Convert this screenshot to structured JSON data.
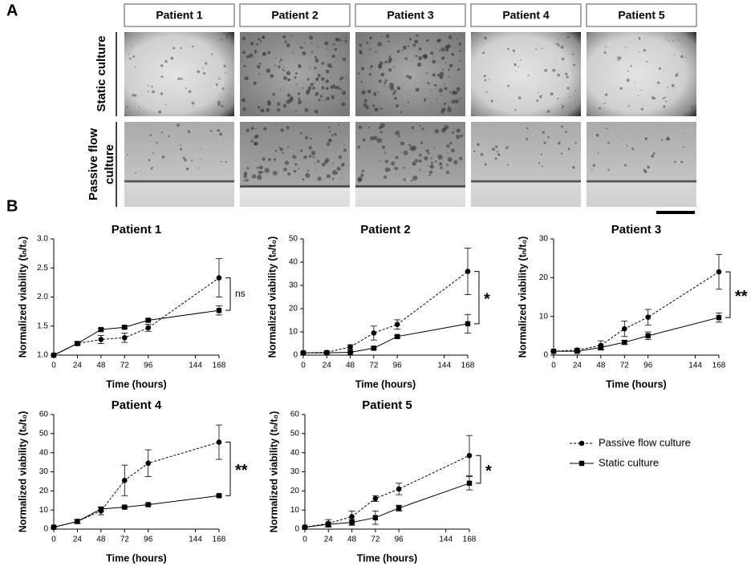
{
  "figure": {
    "panel_a": {
      "label": "A",
      "columns": [
        "Patient 1",
        "Patient 2",
        "Patient 3",
        "Patient 4",
        "Patient 5"
      ],
      "rows": [
        "Static culture",
        "Passive flow culture"
      ]
    },
    "panel_b": {
      "label": "B"
    }
  },
  "chart_data": [
    {
      "type": "line",
      "title": "Patient 1",
      "xlabel": "Time (hours)",
      "ylabel": "Normalized viability (tₙ/t₀)",
      "x": [
        0,
        24,
        48,
        72,
        96,
        168
      ],
      "xlim": [
        0,
        168
      ],
      "xticks": [
        0,
        24,
        48,
        72,
        96,
        144,
        168
      ],
      "ylim": [
        1,
        3
      ],
      "yticks": [
        {
          "value": 1,
          "label": "1.0"
        },
        1.5,
        {
          "value": 2,
          "label": "2.0"
        },
        2.5,
        {
          "value": 3,
          "label": "3.0"
        }
      ],
      "series": [
        {
          "name": "Passive flow culture",
          "color": "#000000",
          "marker": "circle",
          "dashed": true,
          "values": [
            1.0,
            1.2,
            1.27,
            1.3,
            1.47,
            2.33
          ],
          "errors": [
            0,
            0.03,
            0.07,
            0.08,
            0.06,
            0.33
          ]
        },
        {
          "name": "Static culture",
          "color": "#000000",
          "marker": "square",
          "dashed": false,
          "values": [
            1.0,
            1.2,
            1.44,
            1.48,
            1.6,
            1.77
          ],
          "errors": [
            0,
            0.02,
            0.02,
            0.02,
            0.02,
            0.08
          ]
        }
      ],
      "annotation": "ns"
    },
    {
      "type": "line",
      "title": "Patient 2",
      "xlabel": "Time (hours)",
      "ylabel": "Normalized viability (tₙ/t₀)",
      "x": [
        0,
        24,
        48,
        72,
        96,
        168
      ],
      "xlim": [
        0,
        168
      ],
      "xticks": [
        0,
        24,
        48,
        72,
        96,
        144,
        168
      ],
      "ylim": [
        0,
        50
      ],
      "yticks": [
        0,
        10,
        20,
        30,
        40,
        50
      ],
      "series": [
        {
          "name": "Passive flow culture",
          "color": "#000000",
          "marker": "circle",
          "dashed": true,
          "values": [
            1,
            1.2,
            3.5,
            9.5,
            13.2,
            36
          ],
          "errors": [
            0,
            0.5,
            1,
            3,
            2,
            10
          ]
        },
        {
          "name": "Static culture",
          "color": "#000000",
          "marker": "square",
          "dashed": false,
          "values": [
            1,
            1,
            1.2,
            3,
            8,
            13.5
          ],
          "errors": [
            0,
            0,
            0,
            0.5,
            0.5,
            4
          ]
        }
      ],
      "annotation": "*"
    },
    {
      "type": "line",
      "title": "Patient 3",
      "xlabel": "Time (hours)",
      "ylabel": "Normalized viability (tₙ/t₀)",
      "x": [
        0,
        24,
        48,
        72,
        96,
        168
      ],
      "xlim": [
        0,
        168
      ],
      "xticks": [
        0,
        24,
        48,
        72,
        96,
        144,
        168
      ],
      "ylim": [
        0,
        30
      ],
      "yticks": [
        0,
        10,
        20,
        30
      ],
      "series": [
        {
          "name": "Passive flow culture",
          "color": "#000000",
          "marker": "circle",
          "dashed": true,
          "values": [
            1,
            1.3,
            2.5,
            6.8,
            9.8,
            21.5
          ],
          "errors": [
            0,
            0.5,
            1.2,
            2,
            2,
            4.5
          ]
        },
        {
          "name": "Static culture",
          "color": "#000000",
          "marker": "square",
          "dashed": false,
          "values": [
            1,
            1,
            2,
            3.3,
            5,
            9.7
          ],
          "errors": [
            0,
            0,
            0.5,
            0.5,
            1,
            1.2
          ]
        }
      ],
      "annotation": "**"
    },
    {
      "type": "line",
      "title": "Patient 4",
      "xlabel": "Time (hours)",
      "ylabel": "Normalized viability (tₙ/t₀)",
      "x": [
        0,
        24,
        48,
        72,
        96,
        168
      ],
      "xlim": [
        0,
        168
      ],
      "xticks": [
        0,
        24,
        48,
        72,
        96,
        144,
        168
      ],
      "ylim": [
        0,
        60
      ],
      "yticks": [
        0,
        10,
        20,
        30,
        40,
        50,
        60
      ],
      "series": [
        {
          "name": "Passive flow culture",
          "color": "#000000",
          "marker": "circle",
          "dashed": true,
          "values": [
            1,
            4,
            9.5,
            25.5,
            34.5,
            45.5
          ],
          "errors": [
            0,
            1,
            2,
            8,
            7,
            9
          ]
        },
        {
          "name": "Static culture",
          "color": "#000000",
          "marker": "square",
          "dashed": false,
          "values": [
            1,
            4,
            10.5,
            11.5,
            12.8,
            17.5
          ],
          "errors": [
            0,
            1,
            1,
            0.5,
            0.5,
            0.5
          ]
        }
      ],
      "annotation": "**"
    },
    {
      "type": "line",
      "title": "Patient 5",
      "xlabel": "Time (hours)",
      "ylabel": "Normalized viability (tₙ/t₀)",
      "x": [
        0,
        24,
        48,
        72,
        96,
        168
      ],
      "xlim": [
        0,
        168
      ],
      "xticks": [
        0,
        24,
        48,
        72,
        96,
        144,
        168
      ],
      "ylim": [
        0,
        60
      ],
      "yticks": [
        0,
        10,
        20,
        30,
        40,
        50,
        60
      ],
      "series": [
        {
          "name": "Passive flow culture",
          "color": "#000000",
          "marker": "circle",
          "dashed": true,
          "values": [
            1,
            3,
            6.5,
            16,
            21,
            38.5
          ],
          "errors": [
            0,
            2,
            3,
            1.5,
            3,
            10.5
          ]
        },
        {
          "name": "Static culture",
          "color": "#000000",
          "marker": "square",
          "dashed": false,
          "values": [
            1,
            2.5,
            3.5,
            6,
            11,
            24
          ],
          "errors": [
            0,
            1,
            1.5,
            3.5,
            1.5,
            3.5
          ]
        }
      ],
      "annotation": "*"
    }
  ]
}
